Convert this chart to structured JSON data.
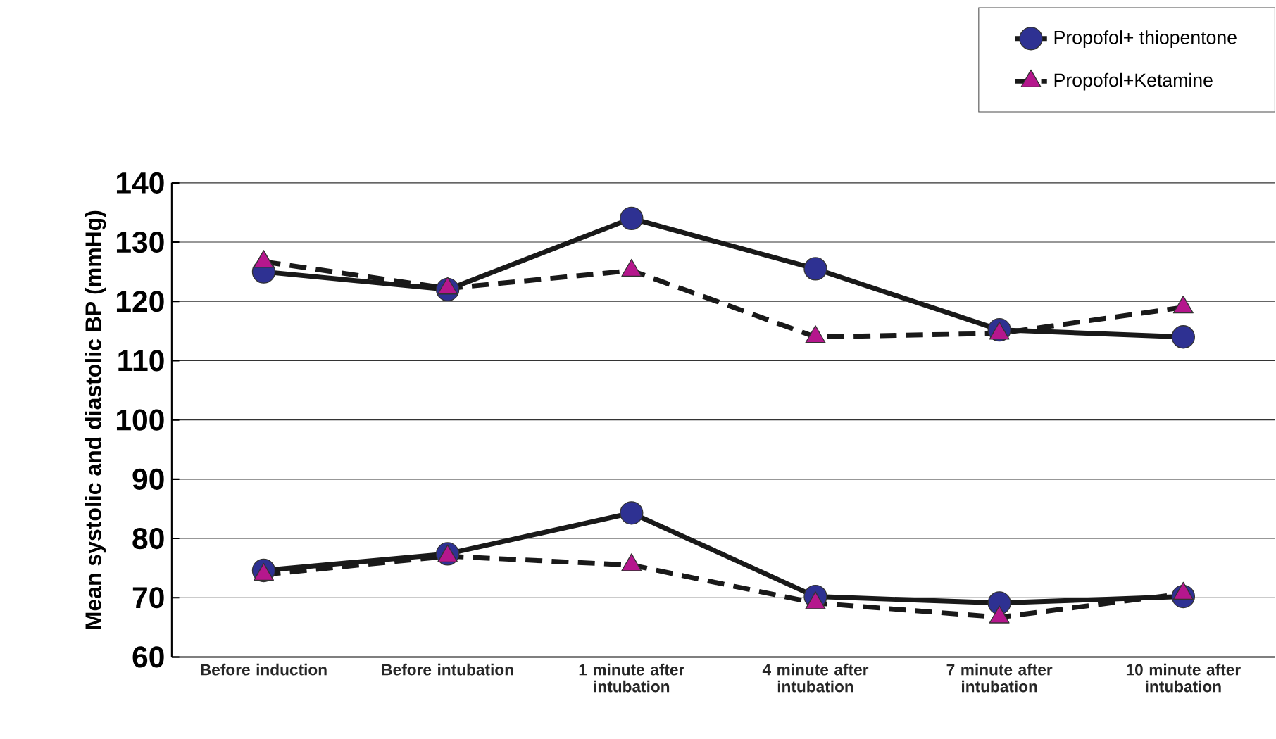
{
  "chart_data": {
    "type": "line",
    "ylabel": "Mean systolic and diastolic BP (mmHg)",
    "categories": [
      "Before induction",
      "Before intubation",
      "1 minute after intubation",
      "4 minute after intubation",
      "7 minute after intubation",
      "10 minute after intubation"
    ],
    "series": [
      {
        "name": "Propofol+ thiopentone",
        "color": "#2e3192",
        "marker": "circle",
        "line_style": "solid",
        "values": [
          125,
          122,
          134,
          125.5,
          115.2,
          114
        ]
      },
      {
        "name": "Propofol+Ketamine",
        "color": "#b5178d",
        "marker": "triangle",
        "line_style": "dashed",
        "values": [
          126.7,
          122.2,
          125.2,
          114,
          114.6,
          119
        ]
      },
      {
        "color": "#2e3192",
        "marker": "circle",
        "line_style": "solid",
        "values": [
          74.6,
          77.4,
          84.3,
          70.2,
          69.1,
          70.2
        ]
      },
      {
        "color": "#b5178d",
        "marker": "triangle",
        "line_style": "dashed",
        "values": [
          73.9,
          77,
          75.5,
          69.1,
          66.7,
          70.7
        ]
      }
    ],
    "ylim": [
      60,
      140
    ],
    "yticks": [
      60,
      70,
      80,
      90,
      100,
      110,
      120,
      130,
      140
    ],
    "grid": "y",
    "legend": "top right"
  }
}
